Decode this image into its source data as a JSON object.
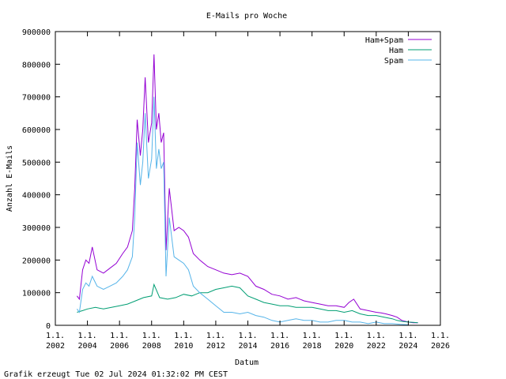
{
  "footer": "Grafik erzeugt Tue 02 Jul 2024 01:32:02 PM CEST",
  "chart_data": {
    "type": "line",
    "title": "E-Mails pro Woche",
    "xlabel": "Datum",
    "ylabel": "Anzahl E-Mails",
    "xlim": [
      2002,
      2026
    ],
    "ylim": [
      0,
      900000
    ],
    "grid": false,
    "legend": "top-right",
    "x_ticks": [
      {
        "top": "1.1.",
        "bottom": "2002",
        "value": 2002
      },
      {
        "top": "1.1.",
        "bottom": "2004",
        "value": 2004
      },
      {
        "top": "1.1.",
        "bottom": "2006",
        "value": 2006
      },
      {
        "top": "1.1.",
        "bottom": "2008",
        "value": 2008
      },
      {
        "top": "1.1.",
        "bottom": "2010",
        "value": 2010
      },
      {
        "top": "1.1.",
        "bottom": "2012",
        "value": 2012
      },
      {
        "top": "1.1.",
        "bottom": "2014",
        "value": 2014
      },
      {
        "top": "1.1.",
        "bottom": "2016",
        "value": 2016
      },
      {
        "top": "1.1.",
        "bottom": "2018",
        "value": 2018
      },
      {
        "top": "1.1.",
        "bottom": "2020",
        "value": 2020
      },
      {
        "top": "1.1.",
        "bottom": "2022",
        "value": 2022
      },
      {
        "top": "1.1.",
        "bottom": "2024",
        "value": 2024
      },
      {
        "top": "1.1.",
        "bottom": "2026",
        "value": 2026
      }
    ],
    "y_ticks": [
      0,
      100000,
      200000,
      300000,
      400000,
      500000,
      600000,
      700000,
      800000,
      900000
    ],
    "y_tick_labels": [
      "0",
      "100000",
      "200000",
      "300000",
      "400000",
      "500000",
      "600000",
      "700000",
      "800000",
      "900000"
    ],
    "series": [
      {
        "name": "Ham+Spam",
        "color": "#9400d3",
        "x": [
          2003.35,
          2003.5,
          2003.7,
          2003.9,
          2004.1,
          2004.3,
          2004.6,
          2005.0,
          2005.4,
          2005.8,
          2006.2,
          2006.5,
          2006.8,
          2006.95,
          2007.1,
          2007.3,
          2007.45,
          2007.6,
          2007.8,
          2008.0,
          2008.15,
          2008.3,
          2008.45,
          2008.6,
          2008.75,
          2008.9,
          2009.1,
          2009.4,
          2009.7,
          2010.0,
          2010.3,
          2010.6,
          2011.0,
          2011.5,
          2012.0,
          2012.5,
          2013.0,
          2013.5,
          2014.0,
          2014.5,
          2015.0,
          2015.5,
          2016.0,
          2016.5,
          2017.0,
          2017.5,
          2018.0,
          2018.5,
          2019.0,
          2019.5,
          2020.0,
          2020.3,
          2020.6,
          2021.0,
          2021.5,
          2022.0,
          2022.3,
          2022.6,
          2023.0,
          2023.3,
          2023.6,
          2024.0,
          2024.3,
          2024.6
        ],
        "values": [
          90000,
          80000,
          170000,
          200000,
          190000,
          240000,
          170000,
          160000,
          175000,
          190000,
          220000,
          240000,
          290000,
          420000,
          630000,
          520000,
          600000,
          760000,
          560000,
          620000,
          830000,
          600000,
          650000,
          560000,
          590000,
          230000,
          420000,
          290000,
          300000,
          290000,
          270000,
          220000,
          200000,
          180000,
          170000,
          160000,
          155000,
          160000,
          150000,
          120000,
          110000,
          95000,
          90000,
          80000,
          85000,
          75000,
          70000,
          65000,
          60000,
          60000,
          55000,
          70000,
          80000,
          50000,
          45000,
          40000,
          38000,
          35000,
          30000,
          25000,
          15000,
          10000,
          8000,
          8000
        ]
      },
      {
        "name": "Ham",
        "color": "#009e73",
        "x": [
          2003.35,
          2003.7,
          2004.0,
          2004.5,
          2005.0,
          2005.5,
          2006.0,
          2006.5,
          2007.0,
          2007.5,
          2008.0,
          2008.15,
          2008.5,
          2009.0,
          2009.5,
          2010.0,
          2010.5,
          2011.0,
          2011.5,
          2012.0,
          2012.5,
          2013.0,
          2013.5,
          2014.0,
          2014.5,
          2015.0,
          2015.5,
          2016.0,
          2016.5,
          2017.0,
          2017.5,
          2018.0,
          2018.5,
          2019.0,
          2019.5,
          2020.0,
          2020.5,
          2021.0,
          2021.5,
          2022.0,
          2022.5,
          2023.0,
          2023.3,
          2023.6,
          2024.0,
          2024.3,
          2024.6
        ],
        "values": [
          40000,
          45000,
          50000,
          55000,
          50000,
          55000,
          60000,
          65000,
          75000,
          85000,
          90000,
          125000,
          85000,
          80000,
          85000,
          95000,
          90000,
          100000,
          100000,
          110000,
          115000,
          120000,
          115000,
          90000,
          80000,
          70000,
          65000,
          60000,
          60000,
          55000,
          55000,
          55000,
          50000,
          45000,
          45000,
          40000,
          45000,
          35000,
          30000,
          30000,
          25000,
          20000,
          15000,
          12000,
          10000,
          9000,
          8000
        ]
      },
      {
        "name": "Spam",
        "color": "#56b4e9",
        "x": [
          2003.35,
          2003.5,
          2003.7,
          2003.9,
          2004.1,
          2004.3,
          2004.6,
          2005.0,
          2005.4,
          2005.8,
          2006.2,
          2006.5,
          2006.8,
          2006.95,
          2007.1,
          2007.3,
          2007.45,
          2007.6,
          2007.8,
          2008.0,
          2008.15,
          2008.3,
          2008.45,
          2008.6,
          2008.75,
          2008.9,
          2009.1,
          2009.4,
          2009.7,
          2010.0,
          2010.3,
          2010.6,
          2011.0,
          2011.5,
          2012.0,
          2012.5,
          2013.0,
          2013.5,
          2014.0,
          2014.5,
          2015.0,
          2015.5,
          2016.0,
          2016.5,
          2017.0,
          2017.5,
          2018.0,
          2018.5,
          2019.0,
          2019.5,
          2020.0,
          2020.5,
          2021.0,
          2021.5,
          2022.0,
          2022.5,
          2023.0,
          2023.5,
          2024.0
        ],
        "values": [
          50000,
          40000,
          110000,
          130000,
          120000,
          150000,
          120000,
          110000,
          120000,
          130000,
          150000,
          170000,
          210000,
          330000,
          560000,
          430000,
          500000,
          650000,
          450000,
          510000,
          700000,
          480000,
          540000,
          480000,
          500000,
          150000,
          330000,
          210000,
          200000,
          190000,
          170000,
          120000,
          100000,
          80000,
          60000,
          40000,
          40000,
          35000,
          40000,
          30000,
          25000,
          15000,
          10000,
          15000,
          20000,
          15000,
          15000,
          10000,
          10000,
          15000,
          15000,
          10000,
          10000,
          5000,
          10000,
          5000,
          5000,
          3000,
          2000
        ]
      }
    ]
  }
}
